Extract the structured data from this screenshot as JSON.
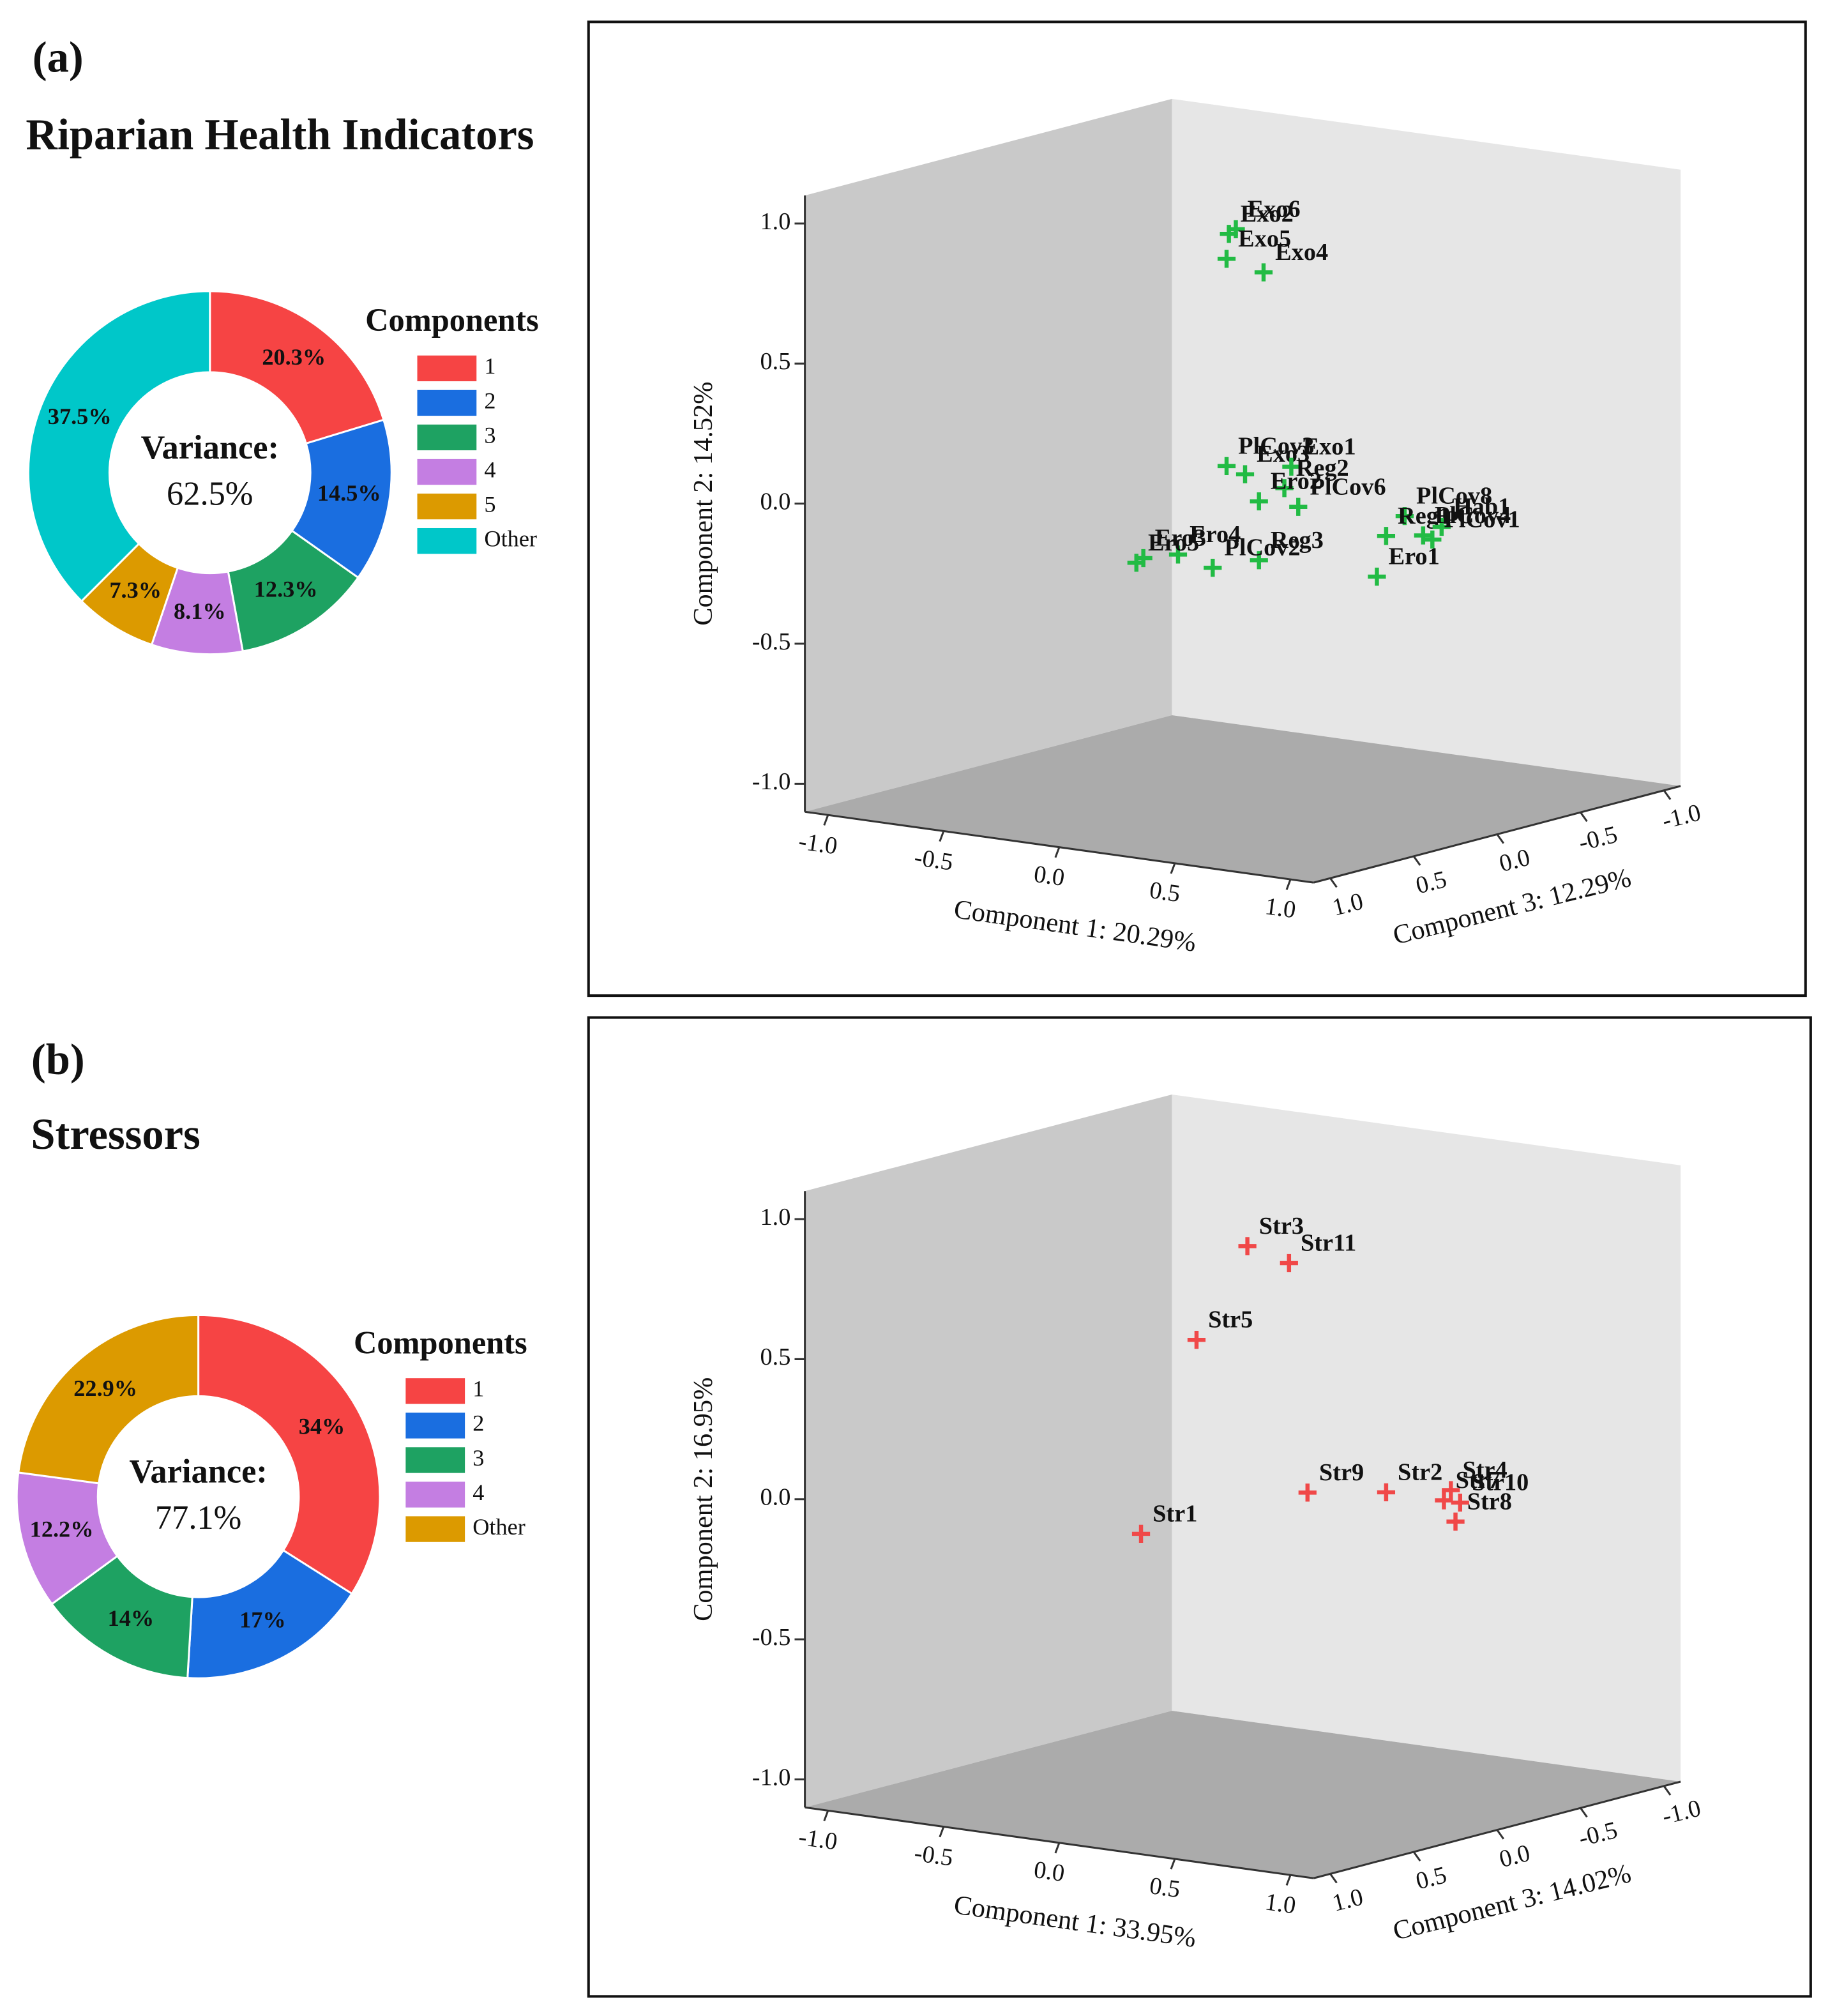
{
  "chart_data": [
    {
      "type": "donut",
      "panel_label": "(a)",
      "title": "Riparian Health Indicators",
      "legend_title": "Components",
      "center_text": [
        "Variance:",
        "62.5%"
      ],
      "categories": [
        "1",
        "2",
        "3",
        "4",
        "5",
        "Other"
      ],
      "values": [
        20.3,
        14.5,
        12.3,
        8.1,
        7.3,
        37.5
      ],
      "value_labels": [
        "20.3%",
        "14.5%",
        "12.3%",
        "8.1%",
        "7.3%",
        "37.5%"
      ],
      "colors": [
        "#f64444",
        "#1a6ee0",
        "#1ea262",
        "#c47ee2",
        "#dc9a00",
        "#00c7c9"
      ]
    },
    {
      "type": "scatter3d",
      "x_label": "Component 1: 20.29%",
      "y_label": "Component 2: 14.52%",
      "z_label": "Component 3: 12.29%",
      "color": "#22bb44",
      "xlim": [
        -1.1,
        1.1
      ],
      "ylim": [
        -1.1,
        1.1
      ],
      "zlim": [
        -1.1,
        1.1
      ],
      "xticks": [
        {
          "value": -1,
          "label": "-1.0"
        },
        {
          "value": -0.5,
          "label": "-0.5"
        },
        {
          "value": 0,
          "label": "0.0"
        },
        {
          "value": 0.5,
          "label": "0.5"
        },
        {
          "value": 1,
          "label": "1.0"
        }
      ],
      "yticks": [
        {
          "value": -1,
          "label": "-1.0"
        },
        {
          "value": -0.5,
          "label": "-0.5"
        },
        {
          "value": 0,
          "label": "0.0"
        },
        {
          "value": 0.5,
          "label": "0.5"
        },
        {
          "value": 1,
          "label": "1.0"
        }
      ],
      "zticks": [
        {
          "value": -1,
          "label": "-1.0"
        },
        {
          "value": -0.5,
          "label": "-0.5"
        },
        {
          "value": 0,
          "label": "0.0"
        },
        {
          "value": 0.5,
          "label": "0.5"
        },
        {
          "value": 1,
          "label": "1.0"
        }
      ],
      "labels": [
        "Exo2",
        "Exo6",
        "Exo4",
        "Exo5",
        "PlCov3",
        "Exo3",
        "Exo1",
        "Reg2",
        "Ero2",
        "PlCov8",
        "Reg1",
        "Hab1",
        "PlCov4",
        "PlCov1",
        "Ero1",
        "Reg3",
        "PlCov2",
        "Ero4",
        "Ero3",
        "Ero5",
        "PlCov6"
      ],
      "x": [
        -0.06,
        -0.03,
        0.09,
        -0.07,
        -0.07,
        0.01,
        0.21,
        0.18,
        0.07,
        0.7,
        0.62,
        0.86,
        0.78,
        0.82,
        0.58,
        0.07,
        -0.13,
        -0.28,
        -0.43,
        -0.46,
        0.24
      ],
      "y": [
        0.91,
        0.93,
        0.79,
        0.82,
        0.08,
        0.06,
        0.11,
        0.03,
        -0.03,
        -0.01,
        -0.09,
        -0.03,
        -0.07,
        -0.08,
        -0.24,
        -0.24,
        -0.29,
        -0.26,
        -0.29,
        -0.31,
        -0.03
      ],
      "z": [
        0,
        0,
        0,
        0,
        0,
        0,
        0,
        0,
        0,
        0,
        0,
        0,
        0,
        0,
        0,
        0,
        0,
        0,
        0,
        0,
        0
      ]
    },
    {
      "type": "donut",
      "panel_label": "(b)",
      "title": "Stressors",
      "legend_title": "Components",
      "center_text": [
        "Variance:",
        "77.1%"
      ],
      "categories": [
        "1",
        "2",
        "3",
        "4",
        "Other"
      ],
      "values": [
        34,
        17,
        14,
        12.2,
        22.9
      ],
      "value_labels": [
        "34%",
        "17%",
        "14%",
        "12.2%",
        "22.9%"
      ],
      "colors": [
        "#f64444",
        "#1a6ee0",
        "#1ea262",
        "#c47ee2",
        "#dc9a00"
      ]
    },
    {
      "type": "scatter3d",
      "x_label": "Component 1: 33.95%",
      "y_label": "Component 2: 16.95%",
      "z_label": "Component 3: 14.02%",
      "color": "#f04848",
      "xlim": [
        -1.1,
        1.1
      ],
      "ylim": [
        -1.1,
        1.1
      ],
      "zlim": [
        -1.1,
        1.1
      ],
      "xticks": [
        {
          "value": -1,
          "label": "-1.0"
        },
        {
          "value": -0.5,
          "label": "-0.5"
        },
        {
          "value": 0,
          "label": "0.0"
        },
        {
          "value": 0.5,
          "label": "0.5"
        },
        {
          "value": 1,
          "label": "1.0"
        }
      ],
      "yticks": [
        {
          "value": -1,
          "label": "-1.0"
        },
        {
          "value": -0.5,
          "label": "-0.5"
        },
        {
          "value": 0,
          "label": "0.0"
        },
        {
          "value": 0.5,
          "label": "0.5"
        },
        {
          "value": 1,
          "label": "1.0"
        }
      ],
      "zticks": [
        {
          "value": -1,
          "label": "-1.0"
        },
        {
          "value": -0.5,
          "label": "-0.5"
        },
        {
          "value": 0,
          "label": "0.0"
        },
        {
          "value": 0.5,
          "label": "0.5"
        },
        {
          "value": 1,
          "label": "1.0"
        }
      ],
      "labels": [
        "Str3",
        "Str11",
        "Str5",
        "Str9",
        "Str2",
        "Str4",
        "Str7",
        "Str10",
        "Str8",
        "Str1"
      ],
      "x": [
        0.02,
        0.2,
        -0.2,
        0.28,
        0.62,
        0.9,
        0.87,
        0.94,
        0.92,
        -0.44
      ],
      "y": [
        0.86,
        0.82,
        0.5,
        0.01,
        0.05,
        0.09,
        0.05,
        0.05,
        -0.02,
        -0.22
      ],
      "z": [
        0,
        0,
        0,
        0,
        0,
        0,
        0,
        0,
        0,
        0
      ]
    }
  ]
}
